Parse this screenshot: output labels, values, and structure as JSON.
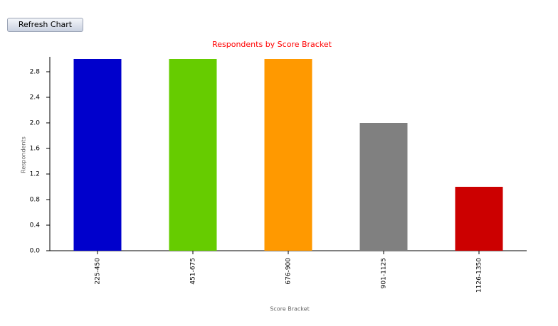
{
  "button": {
    "label": "Refresh Chart"
  },
  "chart_data": {
    "type": "bar",
    "title": "Respondents by Score Bracket",
    "x_label": "Score Bracket",
    "y_label": "Respondents",
    "categories": [
      "225-450",
      "451-675",
      "676-900",
      "901-1125",
      "1126-1350"
    ],
    "values": [
      3,
      3,
      3,
      2,
      1
    ],
    "colors": [
      "#0000cc",
      "#66cc00",
      "#ff9900",
      "#808080",
      "#cc0000"
    ],
    "ylim": [
      0,
      3
    ],
    "yticks": [
      {
        "value": 0,
        "label": "0.0"
      },
      {
        "value": 0.4,
        "label": "0.4"
      },
      {
        "value": 0.8,
        "label": "0.8"
      },
      {
        "value": 1.2,
        "label": "1.2"
      },
      {
        "value": 1.6,
        "label": "1.6"
      },
      {
        "value": 2.0,
        "label": "2.0"
      },
      {
        "value": 2.4,
        "label": "2.4"
      },
      {
        "value": 2.8,
        "label": "2.8"
      }
    ]
  }
}
